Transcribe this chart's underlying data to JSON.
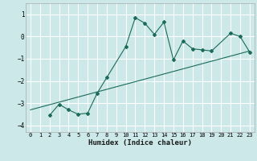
{
  "xlabel": "Humidex (Indice chaleur)",
  "ylabel": "",
  "bg_color": "#cce8e8",
  "grid_color": "#ffffff",
  "line_color": "#1a6b5a",
  "xlim": [
    -0.5,
    23.5
  ],
  "ylim": [
    -4.3,
    1.5
  ],
  "x_ticks": [
    0,
    1,
    2,
    3,
    4,
    5,
    6,
    7,
    8,
    9,
    10,
    11,
    12,
    13,
    14,
    15,
    16,
    17,
    18,
    19,
    20,
    21,
    22,
    23
  ],
  "y_ticks": [
    -4,
    -3,
    -2,
    -1,
    0,
    1
  ],
  "curve_x": [
    2,
    3,
    4,
    5,
    6,
    7,
    8,
    10,
    11,
    12,
    13,
    14,
    15,
    16,
    17,
    18,
    19,
    21,
    22,
    23
  ],
  "curve_y": [
    -3.55,
    -3.05,
    -3.3,
    -3.5,
    -3.45,
    -2.55,
    -1.85,
    -0.45,
    0.85,
    0.6,
    0.1,
    0.65,
    -1.05,
    -0.2,
    -0.55,
    -0.6,
    -0.65,
    0.15,
    0.0,
    -0.7
  ],
  "line_x": [
    0,
    23
  ],
  "line_y": [
    -3.3,
    -0.65
  ]
}
